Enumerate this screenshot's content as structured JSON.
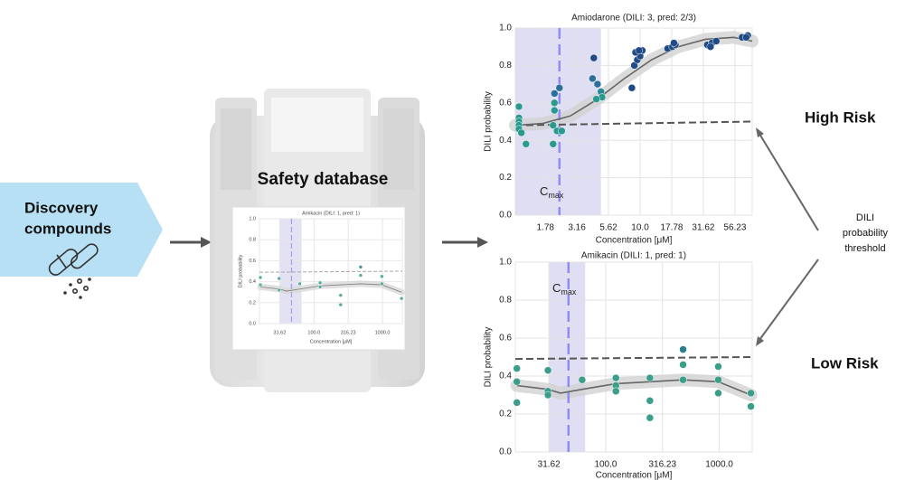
{
  "discovery": {
    "line1": "Discovery",
    "line2": "compounds"
  },
  "database": {
    "label": "Safety database"
  },
  "annotations": {
    "high_risk": "High Risk",
    "low_risk": "Low Risk",
    "threshold_line1": "DILI",
    "threshold_line2": "probability",
    "threshold_line3": "threshold"
  },
  "chart_data": [
    {
      "type": "scatter",
      "title": "Amiodarone (DILI: 3, pred: 2/3)",
      "xlabel": "Concentration [μM]",
      "ylabel": "DILI probability",
      "xscale": "log",
      "xlim": [
        1.03,
        77
      ],
      "ylim": [
        0,
        1
      ],
      "grid": true,
      "xticks": [
        1.78,
        3.16,
        5.62,
        {
          "value": 10,
          "label": "10.0"
        },
        17.78,
        31.62,
        56.23
      ],
      "yticks": [
        {
          "value": 0,
          "label": "0.0"
        },
        0.2,
        0.4,
        0.6,
        0.8,
        {
          "value": 1,
          "label": "1.0"
        }
      ],
      "x": [
        1.1,
        1.1,
        1.1,
        1.1,
        1.1,
        1.15,
        1.25,
        2.1,
        2.1,
        2.05,
        2.2,
        2.05,
        2.1,
        2.3,
        2.4,
        4.3,
        4.2,
        4.6,
        4.9,
        5.0,
        4.5,
        8.6,
        9.0,
        9.5,
        10,
        9.2,
        10.4,
        9.8,
        16.5,
        18,
        19,
        18.5,
        34,
        37,
        40,
        36,
        64,
        71,
        69
      ],
      "values": [
        0.58,
        0.52,
        0.5,
        0.48,
        0.46,
        0.44,
        0.38,
        0.6,
        0.56,
        0.48,
        0.45,
        0.38,
        0.65,
        0.68,
        0.45,
        0.84,
        0.73,
        0.7,
        0.66,
        0.63,
        0.62,
        0.68,
        0.8,
        0.83,
        0.85,
        0.87,
        0.88,
        0.88,
        0.89,
        0.9,
        0.91,
        0.92,
        0.91,
        0.92,
        0.93,
        0.9,
        0.95,
        0.96,
        0.95
      ],
      "colors": [
        "#2a9a8e",
        "#2a9a8e",
        "#2a9a8e",
        "#2a9a8e",
        "#2a9a8e",
        "#2a9a8e",
        "#2a9a8e",
        "#2a9a8e",
        "#2a9a8e",
        "#2a9a8e",
        "#2a9a8e",
        "#2a9a8e",
        "#2c6f9a",
        "#2c6f9a",
        "#2a9a8e",
        "#1f4a86",
        "#2c6f9a",
        "#2c6f9a",
        "#2a8a96",
        "#2a9a8e",
        "#2a9a8e",
        "#1f4a86",
        "#1f4a86",
        "#1f4a86",
        "#1f4a86",
        "#1f4a86",
        "#1f4a86",
        "#1f4a86",
        "#1f4a86",
        "#1f4a86",
        "#1f4a86",
        "#1f4a86",
        "#1f4a86",
        "#1f4a86",
        "#1f4a86",
        "#1f4a86",
        "#1f4a86",
        "#1f4a86",
        "#1f4a86"
      ],
      "fit_x": [
        1.03,
        1.7,
        2.8,
        4.6,
        7.5,
        12.3,
        20,
        33,
        55,
        77
      ],
      "fit_values": [
        0.48,
        0.49,
        0.53,
        0.62,
        0.73,
        0.83,
        0.9,
        0.94,
        0.95,
        0.93
      ],
      "fit_color": "#666666",
      "threshold_values": [
        0.48,
        0.5
      ],
      "threshold_color": "#555555",
      "cmax": 2.3,
      "cmax_band": [
        1.03,
        4.9
      ],
      "band_color": "#c9c8ea",
      "cmax_color": "#8f8ef0",
      "cmax_label": "C",
      "cmax_subscript": "max"
    },
    {
      "type": "scatter",
      "title": "Amikacin (DILI: 1, pred: 1)",
      "xlabel": "Concentration [μM]",
      "ylabel": "DILI probability",
      "xscale": "log",
      "xlim": [
        16,
        1950
      ],
      "ylim": [
        0,
        1
      ],
      "grid": true,
      "xticks": [
        31.62,
        {
          "value": 100,
          "label": "100.0"
        },
        316.23,
        {
          "value": 1000,
          "label": "1000.0"
        }
      ],
      "yticks": [
        {
          "value": 0,
          "label": "0.0"
        },
        0.2,
        0.4,
        0.6,
        0.8,
        {
          "value": 1,
          "label": "1.0"
        }
      ],
      "x": [
        16.5,
        16.5,
        16.5,
        31,
        31,
        31,
        62,
        123,
        123,
        123,
        245,
        245,
        245,
        480,
        480,
        480,
        980,
        980,
        980,
        1900,
        1900
      ],
      "values": [
        0.44,
        0.37,
        0.26,
        0.43,
        0.32,
        0.3,
        0.38,
        0.39,
        0.35,
        0.32,
        0.39,
        0.27,
        0.18,
        0.54,
        0.46,
        0.38,
        0.45,
        0.38,
        0.31,
        0.31,
        0.24
      ],
      "colors": [
        "#3a9e8a",
        "#3a9e8a",
        "#3a9e8a",
        "#3a9e8a",
        "#3a9e8a",
        "#3a9e8a",
        "#3a9e8a",
        "#3a9e8a",
        "#3a9e8a",
        "#3a9e8a",
        "#3a9e8a",
        "#3a9e8a",
        "#3a9e8a",
        "#2a7e8c",
        "#3a9e8a",
        "#3a9e8a",
        "#3a9e8a",
        "#3a9e8a",
        "#3a9e8a",
        "#3a9e8a",
        "#3a9e8a"
      ],
      "fit_x": [
        16.5,
        31,
        40,
        62,
        123,
        245,
        480,
        980,
        1900
      ],
      "fit_values": [
        0.35,
        0.33,
        0.31,
        0.33,
        0.36,
        0.37,
        0.38,
        0.37,
        0.3
      ],
      "fit_color": "#666666",
      "threshold_values": [
        0.49,
        0.5
      ],
      "threshold_color": "#555555",
      "cmax": 47,
      "cmax_band": [
        31.6,
        66
      ],
      "band_color": "#c9c8ea",
      "cmax_color": "#8f8ef0",
      "cmax_label": "C",
      "cmax_subscript": "max"
    },
    {
      "type": "scatter",
      "title": "Amikacin (DILI: 1, pred: 1)",
      "xlabel": "Concentration [μM]",
      "ylabel": "DILI probability",
      "xscale": "log",
      "xlim": [
        16,
        1950
      ],
      "ylim": [
        0,
        1
      ],
      "grid": true,
      "xticks": [
        31.62,
        {
          "value": 100,
          "label": "100.0"
        },
        316.23,
        {
          "value": 1000,
          "label": "1000.0"
        }
      ],
      "yticks": [
        {
          "value": 0,
          "label": "0.0"
        },
        0.2,
        0.4,
        0.6,
        0.8,
        {
          "value": 1,
          "label": "1.0"
        }
      ],
      "x": [
        16.5,
        16.5,
        31,
        31,
        62,
        123,
        123,
        245,
        245,
        480,
        480,
        980,
        980,
        1900
      ],
      "values": [
        0.44,
        0.37,
        0.43,
        0.32,
        0.38,
        0.39,
        0.35,
        0.27,
        0.18,
        0.54,
        0.46,
        0.45,
        0.38,
        0.24
      ],
      "colors": [
        "#3a9e8a",
        "#3a9e8a",
        "#3a9e8a",
        "#3a9e8a",
        "#3a9e8a",
        "#3a9e8a",
        "#3a9e8a",
        "#3a9e8a",
        "#3a9e8a",
        "#2a7e8c",
        "#3a9e8a",
        "#3a9e8a",
        "#3a9e8a",
        "#3a9e8a"
      ],
      "fit_x": [
        16.5,
        31,
        40,
        62,
        123,
        245,
        480,
        980,
        1900
      ],
      "fit_values": [
        0.35,
        0.33,
        0.31,
        0.33,
        0.36,
        0.37,
        0.38,
        0.37,
        0.3
      ],
      "fit_color": "#666666",
      "threshold_values": [
        0.49,
        0.5
      ],
      "threshold_color": "#999999",
      "cmax": 47,
      "cmax_band": [
        31.6,
        66
      ],
      "band_color": "#c9c8ea",
      "cmax_color": "#8f8ef0"
    }
  ]
}
